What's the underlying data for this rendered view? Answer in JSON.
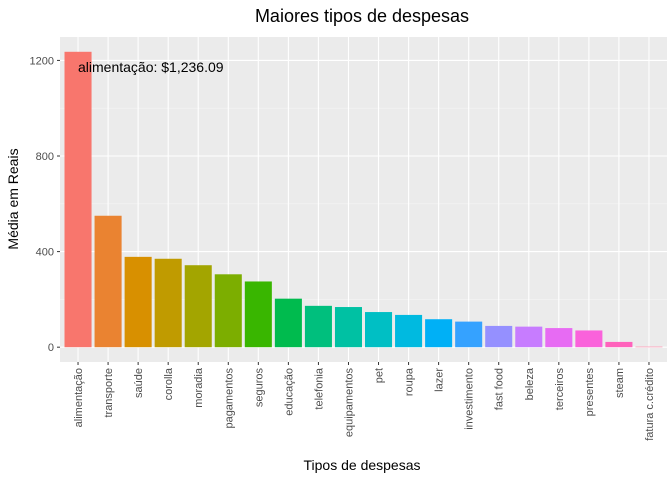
{
  "chart_data": {
    "type": "bar",
    "title": "Maiores tipos de despesas",
    "xlabel": "Tipos de despesas",
    "ylabel": "Média em Reais",
    "categories": [
      "alimentação",
      "transporte",
      "saúde",
      "corolla",
      "moradia",
      "pagamentos",
      "seguros",
      "educação",
      "telefonia",
      "equipamentos",
      "pet",
      "roupa",
      "lazer",
      "investimento",
      "fast food",
      "beleza",
      "terceiros",
      "presentes",
      "steam",
      "fatura c.crédito"
    ],
    "values": [
      1236.09,
      550,
      378,
      370,
      343,
      305,
      275,
      203,
      173,
      168,
      147,
      135,
      117,
      107,
      89,
      86,
      80,
      70,
      22,
      2
    ],
    "colors": [
      "#F8766D",
      "#EA8331",
      "#D89000",
      "#C09B00",
      "#A3A500",
      "#7CAE00",
      "#39B600",
      "#00BB4E",
      "#00BF7D",
      "#00C1A3",
      "#00BFC4",
      "#00BAE0",
      "#00B0F6",
      "#35A2FF",
      "#9590FF",
      "#C77CFF",
      "#E76BF3",
      "#FA62DB",
      "#FF62BC",
      "#FF6C91"
    ],
    "yticks": [
      0,
      400,
      800,
      1200
    ],
    "ylim": [
      -62,
      1298
    ],
    "grid": true,
    "annotation": {
      "category": "alimentação",
      "text": "alimentação: $1,236.09"
    }
  }
}
